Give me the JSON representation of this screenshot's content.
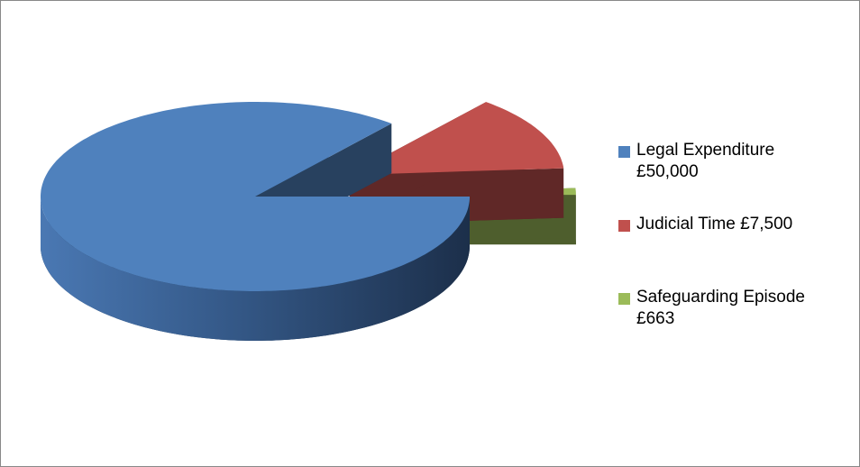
{
  "chart_data": {
    "type": "pie3d",
    "categories": [
      "Legal Expenditure £50,000",
      "Judicial Time £7,500",
      "Safeguarding Episode £663"
    ],
    "values": [
      50000,
      7500,
      663
    ],
    "colors": [
      "#4f81bd",
      "#c0504d",
      "#9bbb59"
    ],
    "exploded": [
      false,
      true,
      true
    ],
    "legend": "right"
  }
}
